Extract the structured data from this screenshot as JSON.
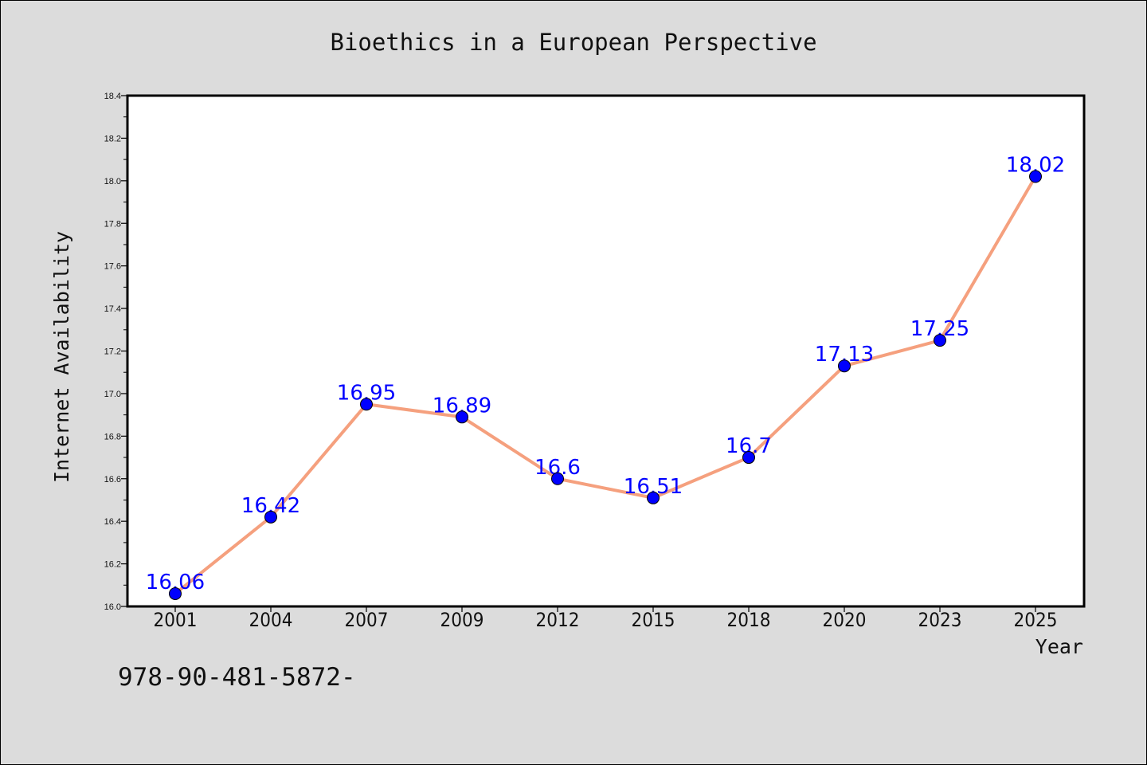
{
  "footer_text": "978-90-481-5872-",
  "colors": {
    "background": "#dcdcdc",
    "plot_background": "#ffffff",
    "line": "#f5a07e",
    "marker": "#0000ff",
    "data_label": "#0000ff",
    "text": "#111111"
  },
  "chart_data": {
    "type": "line",
    "title": "Bioethics in a European Perspective",
    "xlabel": "Year",
    "ylabel": "Internet Availability",
    "categories": [
      "2001",
      "2004",
      "2007",
      "2009",
      "2012",
      "2015",
      "2018",
      "2020",
      "2023",
      "2025"
    ],
    "series": [
      {
        "values": [
          16.06,
          16.42,
          16.95,
          16.89,
          16.6,
          16.51,
          16.7,
          17.13,
          17.25,
          18.02
        ],
        "labels": [
          "16.06",
          "16.42",
          "16.95",
          "16.89",
          "16.6",
          "16.51",
          "16.7",
          "17.13",
          "17.25",
          "18.02"
        ]
      }
    ],
    "ylim": [
      16.0,
      18.4
    ],
    "yticks": [
      "16.0",
      "16.2",
      "16.4",
      "16.6",
      "16.8",
      "17.0",
      "17.2",
      "17.4",
      "17.6",
      "17.8",
      "18.0",
      "18.2",
      "18.4"
    ],
    "grid": false,
    "legend": "none"
  }
}
